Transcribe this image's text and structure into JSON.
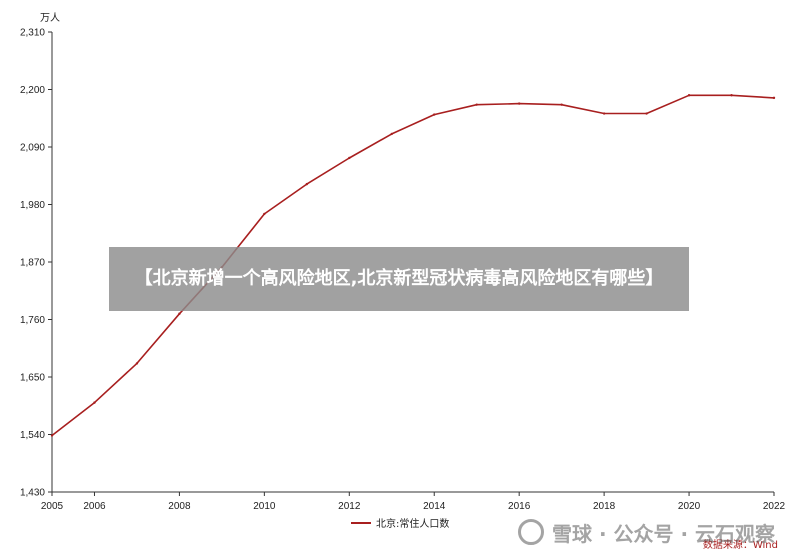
{
  "chart_data": {
    "type": "line",
    "unit_label": "万人",
    "x": [
      2005,
      2006,
      2007,
      2008,
      2009,
      2010,
      2011,
      2012,
      2013,
      2014,
      2015,
      2016,
      2017,
      2018,
      2019,
      2020,
      2021,
      2022
    ],
    "series": [
      {
        "name": "北京:常住人口数",
        "color": "#a81f1f",
        "values": [
          1538,
          1601,
          1676,
          1771,
          1860,
          1962,
          2019,
          2069,
          2115,
          2152,
          2171,
          2173,
          2171,
          2154,
          2154,
          2189,
          2189,
          2184
        ]
      }
    ],
    "ylim": [
      1430,
      2310
    ],
    "yticks": [
      "1,430",
      "1,540",
      "1,650",
      "1,760",
      "1,870",
      "1,980",
      "2,090",
      "2,200",
      "2,310"
    ],
    "xticks": [
      "2005",
      "2006",
      "2008",
      "2010",
      "2012",
      "2014",
      "2016",
      "2018",
      "2020",
      "2022"
    ],
    "grid": false,
    "legend_position": "bottom-center",
    "source": "数据来源：Wind"
  },
  "banner": {
    "text": "【北京新增一个高风险地区,北京新型冠状病毒高风险地区有哪些】"
  },
  "watermark": {
    "text": "雪球 · 公众号 · 云石观察"
  },
  "colors": {
    "line": "#a81f1f",
    "axis": "#333333",
    "banner_bg": "#8c8c8c"
  }
}
